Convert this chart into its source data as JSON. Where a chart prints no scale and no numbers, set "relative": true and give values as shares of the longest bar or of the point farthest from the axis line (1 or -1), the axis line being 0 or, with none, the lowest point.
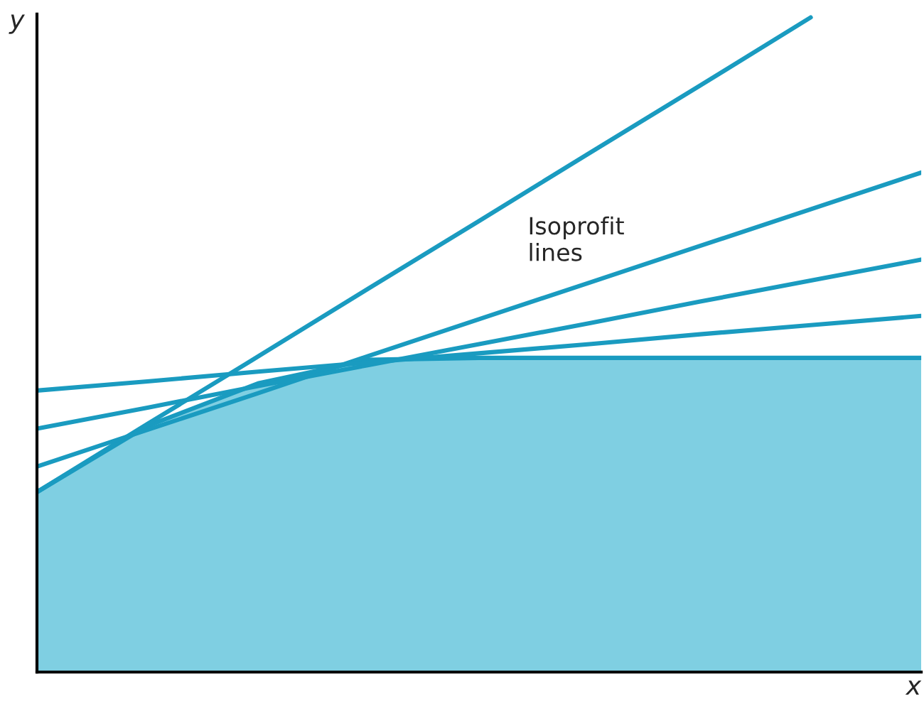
{
  "chart_data": {
    "type": "line",
    "relative": true,
    "xlabel": "x",
    "ylabel": "y",
    "categories": [
      null,
      null,
      null,
      null,
      null,
      null,
      null,
      null,
      null
    ],
    "series": [
      {
        "type": "area",
        "color": "#7fcfe2",
        "values": [
          0.275,
          0.376,
          0.441,
          0.477,
          0.48,
          0.48,
          0.48,
          0.48,
          0.48
        ]
      },
      {
        "color": "#1a9bc0",
        "values": [
          0.275,
          0.379,
          0.482,
          0.586,
          0.689,
          0.793,
          0.896,
          1.0,
          null
        ]
      },
      {
        "color": "#1a9bc0",
        "values": [
          0.314,
          0.37,
          0.426,
          0.483,
          0.539,
          0.595,
          0.651,
          0.707,
          0.763
        ]
      },
      {
        "color": "#1a9bc0",
        "values": [
          0.372,
          0.404,
          0.437,
          0.469,
          0.501,
          0.533,
          0.566,
          0.598,
          0.63
        ]
      },
      {
        "color": "#1a9bc0",
        "values": [
          0.43,
          0.444,
          0.459,
          0.473,
          0.487,
          0.501,
          0.516,
          0.53,
          0.544
        ]
      }
    ],
    "annotations": [
      "Isoprofit\nlines"
    ],
    "grid": false,
    "legend": false
  }
}
